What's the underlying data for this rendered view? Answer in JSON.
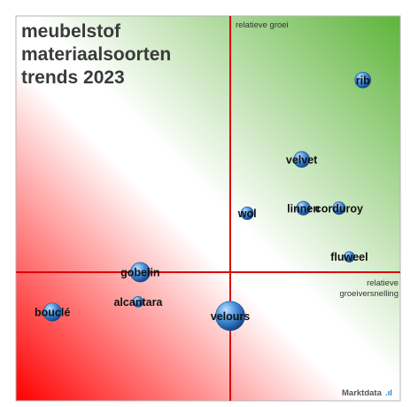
{
  "chart_data": {
    "type": "bubble",
    "title_lines": [
      "meubelstof",
      "materiaalsoorten",
      "trends 2023"
    ],
    "ylabel": "relatieve groei",
    "xlabel_lines": [
      "relatieve",
      "groeiversnelling"
    ],
    "xlim": [
      -1,
      1
    ],
    "ylim": [
      -1,
      1
    ],
    "points": [
      {
        "label": "rib",
        "x": 0.78,
        "y": 0.75,
        "size": 0.3
      },
      {
        "label": "velvet",
        "x": 0.42,
        "y": 0.44,
        "size": 0.3
      },
      {
        "label": "wol",
        "x": 0.1,
        "y": 0.23,
        "size": 0.24
      },
      {
        "label": "linnen",
        "x": 0.43,
        "y": 0.25,
        "size": 0.26
      },
      {
        "label": "corduroy",
        "x": 0.64,
        "y": 0.25,
        "size": 0.24
      },
      {
        "label": "fluweel",
        "x": 0.7,
        "y": 0.06,
        "size": 0.16
      },
      {
        "label": "gobelin",
        "x": -0.42,
        "y": 0.0,
        "size": 0.37
      },
      {
        "label": "alcantara",
        "x": -0.43,
        "y": -0.23,
        "size": 0.16
      },
      {
        "label": "bouclé",
        "x": -0.83,
        "y": -0.31,
        "size": 0.34
      },
      {
        "label": "velours",
        "x": 0.0,
        "y": -0.34,
        "size": 0.55
      }
    ]
  },
  "brand": {
    "name": "Marktdata",
    "accent": ".ıl"
  },
  "colors": {
    "green": "#5db43a",
    "red": "#ff0000",
    "axis_line": "#dd0000",
    "bubble": "#2f7fd0"
  }
}
